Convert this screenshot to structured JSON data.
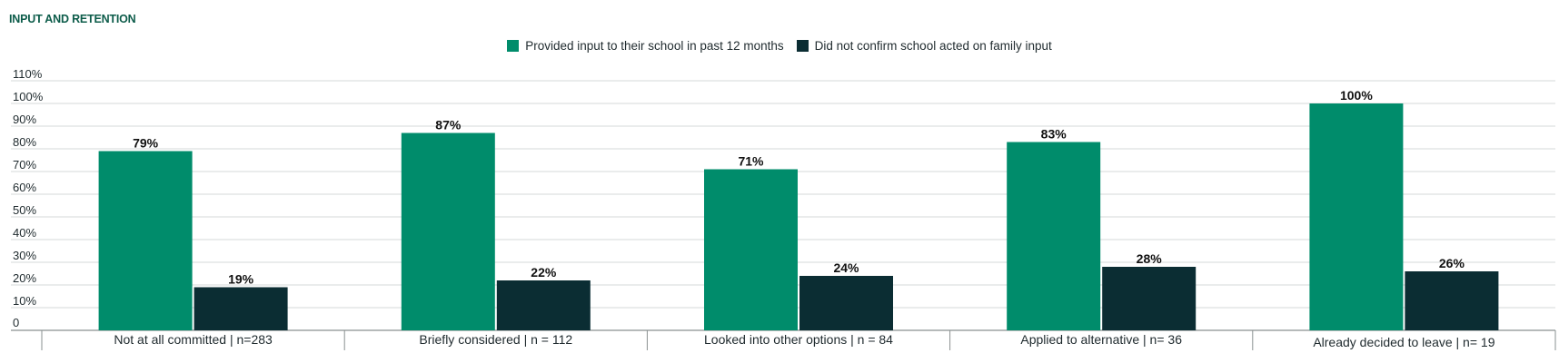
{
  "chart_data": {
    "type": "bar",
    "title": "INPUT AND RETENTION",
    "categories": [
      "Not at all committed | n=283",
      "Briefly considered | n = 112",
      "Looked into other options | n = 84",
      "Applied to alternative | n= 36",
      "Already decided to leave | n= 19"
    ],
    "series": [
      {
        "name": "Provided input to their school in past 12 months",
        "color": "#008c6b",
        "values": [
          79,
          87,
          71,
          83,
          100
        ],
        "labels": [
          "79%",
          "87%",
          "71%",
          "83%",
          "100%"
        ]
      },
      {
        "name": "Did not confirm school acted on family input",
        "color": "#0b2d33",
        "values": [
          19,
          22,
          24,
          28,
          26
        ],
        "labels": [
          "19%",
          "22%",
          "24%",
          "28%",
          "26%"
        ]
      }
    ],
    "y_ticks": [
      {
        "value": 0,
        "label": "0"
      },
      {
        "value": 10,
        "label": "10%"
      },
      {
        "value": 20,
        "label": "20%"
      },
      {
        "value": 30,
        "label": "30%"
      },
      {
        "value": 40,
        "label": "40%"
      },
      {
        "value": 50,
        "label": "50%"
      },
      {
        "value": 60,
        "label": "60%"
      },
      {
        "value": 70,
        "label": "70%"
      },
      {
        "value": 80,
        "label": "80%"
      },
      {
        "value": 90,
        "label": "90%"
      },
      {
        "value": 100,
        "label": "100%"
      },
      {
        "value": 110,
        "label": "110%"
      }
    ],
    "ylim": [
      0,
      110
    ],
    "grid": true,
    "legend_position": "top-center",
    "xlabel": "",
    "ylabel": ""
  }
}
